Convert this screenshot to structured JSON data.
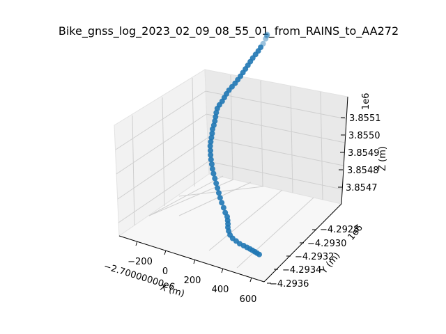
{
  "chart_data": {
    "type": "scatter3d",
    "title": "Bike_gnss_log_2023_02_09_08_55_01_from_RAINS_to_AA272",
    "xlabel": "X (m)",
    "ylabel": "Y (m)",
    "zlabel": "Z (m)",
    "x_offset_label": "−2.70000000e6",
    "y_multiplier_label": "1e6",
    "z_multiplier_label": "1e6",
    "x_ticks": [
      "−200",
      "0",
      "200",
      "400",
      "600"
    ],
    "y_ticks": [
      "−4.2936",
      "−4.2934",
      "−4.2932",
      "−4.2930",
      "−4.2928"
    ],
    "z_ticks": [
      "3.8547",
      "3.8548",
      "3.8549",
      "3.8550",
      "3.8551"
    ],
    "marker_color": "#1f77b4",
    "grid": true,
    "series": [
      {
        "x": [
          120,
          118,
          116,
          112,
          108,
          104,
          98,
          92,
          88,
          84,
          80,
          76,
          72,
          66,
          60,
          52,
          44,
          40,
          38,
          36,
          30,
          28,
          34,
          42,
          50,
          56,
          60,
          70,
          78,
          86,
          96,
          110,
          124,
          140,
          158,
          176,
          196,
          218,
          240,
          262,
          284,
          306,
          330,
          356,
          380,
          400,
          410,
          418,
          424,
          436,
          452,
          470,
          488,
          506,
          520,
          530,
          538,
          542,
          546,
          548,
          550
        ],
        "y": [
          -4.29285,
          -4.29285,
          -4.29286,
          -4.29288,
          -4.2929,
          -4.29292,
          -4.29294,
          -4.29296,
          -4.29298,
          -4.293,
          -4.29302,
          -4.29304,
          -4.29306,
          -4.29308,
          -4.2931,
          -4.29312,
          -4.29314,
          -4.29316,
          -4.29318,
          -4.2932,
          -4.29322,
          -4.29324,
          -4.29326,
          -4.29328,
          -4.2933,
          -4.29332,
          -4.29334,
          -4.29336,
          -4.29338,
          -4.2934,
          -4.29342,
          -4.29344,
          -4.29346,
          -4.29348,
          -4.2935,
          -4.29352,
          -4.29354,
          -4.29356,
          -4.29358,
          -4.2936,
          -4.29362,
          -4.29364,
          -4.29366,
          -4.29368,
          -4.2937,
          -4.29371,
          -4.29372,
          -4.29373,
          -4.29374,
          -4.29375,
          -4.29376,
          -4.29376,
          -4.29375,
          -4.29374,
          -4.29372,
          -4.2937,
          -4.29368,
          -4.29366,
          -4.29364,
          -4.29362,
          -4.2936
        ],
        "z": [
          3.855185,
          3.85518,
          3.85517,
          3.855155,
          3.855145,
          3.855135,
          3.855125,
          3.855115,
          3.855105,
          3.855095,
          3.855085,
          3.855075,
          3.855065,
          3.855055,
          3.855045,
          3.855035,
          3.855025,
          3.855015,
          3.855005,
          3.854995,
          3.854985,
          3.854975,
          3.854965,
          3.854955,
          3.854945,
          3.854935,
          3.854925,
          3.854915,
          3.854905,
          3.854895,
          3.854885,
          3.854875,
          3.854865,
          3.854855,
          3.854845,
          3.854835,
          3.854825,
          3.854815,
          3.854805,
          3.854795,
          3.854785,
          3.854775,
          3.854765,
          3.854755,
          3.854745,
          3.854735,
          3.854725,
          3.854715,
          3.854705,
          3.854695,
          3.854685,
          3.854675,
          3.854665,
          3.854655,
          3.854645,
          3.854635,
          3.854625,
          3.854615,
          3.854605,
          3.854595,
          3.854585
        ]
      }
    ]
  }
}
